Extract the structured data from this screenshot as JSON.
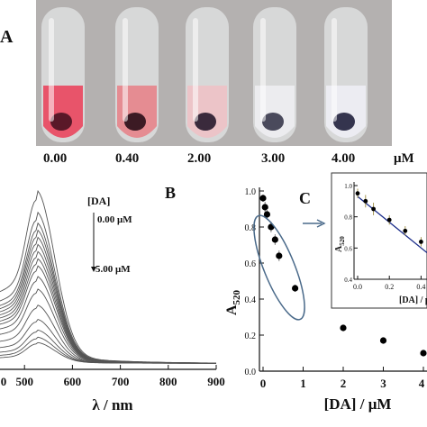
{
  "panel_a": {
    "letter": "A",
    "unit": "μM",
    "tubes": [
      {
        "conc": "0.00",
        "liquid": "#e8546a",
        "pellet": "#5a1828"
      },
      {
        "conc": "0.40",
        "liquid": "#e58c92",
        "pellet": "#3c1a24"
      },
      {
        "conc": "2.00",
        "liquid": "#ecc4c8",
        "pellet": "#3a2a3c"
      },
      {
        "conc": "3.00",
        "liquid": "#ececef",
        "pellet": "#4a4a5c"
      },
      {
        "conc": "4.00",
        "liquid": "#ececf2",
        "pellet": "#34344e"
      }
    ]
  },
  "chart_data": [
    {
      "panel": "B",
      "type": "line",
      "xlabel": "λ / nm",
      "ylabel": "",
      "xlim": [
        400,
        900
      ],
      "xticks": [
        "0",
        "500",
        "600",
        "700",
        "800",
        "900"
      ],
      "legend_title": "[DA]",
      "legend_top": "0.00 μM",
      "legend_bottom": "5.00 μM",
      "series_peak_values": [
        1.0,
        0.88,
        0.82,
        0.78,
        0.74,
        0.7,
        0.66,
        0.62,
        0.58,
        0.52,
        0.45,
        0.36,
        0.28,
        0.22,
        0.18,
        0.15
      ],
      "baseline": 0.035
    },
    {
      "panel": "C",
      "type": "scatter",
      "xlabel": "[DA] / μM",
      "ylabel": "A520",
      "xlim": [
        0,
        4
      ],
      "ylim": [
        0,
        1.0
      ],
      "xticks": [
        "0",
        "1",
        "2",
        "3",
        "4"
      ],
      "yticks": [
        "0.0",
        "0.2",
        "0.4",
        "0.6",
        "0.8",
        "1.0"
      ],
      "points": [
        {
          "x": 0.0,
          "y": 0.96,
          "err": 0.02
        },
        {
          "x": 0.05,
          "y": 0.91,
          "err": 0.03
        },
        {
          "x": 0.1,
          "y": 0.87,
          "err": 0.03
        },
        {
          "x": 0.2,
          "y": 0.8,
          "err": 0.03
        },
        {
          "x": 0.3,
          "y": 0.73,
          "err": 0.03
        },
        {
          "x": 0.4,
          "y": 0.64,
          "err": 0.03
        },
        {
          "x": 0.8,
          "y": 0.46,
          "err": 0.02
        },
        {
          "x": 2.0,
          "y": 0.24,
          "err": 0.0
        },
        {
          "x": 3.0,
          "y": 0.17,
          "err": 0.0
        },
        {
          "x": 4.0,
          "y": 0.1,
          "err": 0.0
        }
      ],
      "inset": {
        "xlabel": "[DA] / μ",
        "ylabel": "A520",
        "xlim": [
          0,
          0.5
        ],
        "ylim": [
          0.4,
          1.0
        ],
        "xticks": [
          "0.0",
          "0.2",
          "0.4"
        ],
        "yticks": [
          "0.4",
          "0.6",
          "0.8",
          "1.0"
        ],
        "points": [
          {
            "x": 0.0,
            "y": 0.95,
            "err": 0.03
          },
          {
            "x": 0.05,
            "y": 0.9,
            "err": 0.04
          },
          {
            "x": 0.1,
            "y": 0.85,
            "err": 0.04
          },
          {
            "x": 0.2,
            "y": 0.78,
            "err": 0.03
          },
          {
            "x": 0.3,
            "y": 0.71,
            "err": 0.03
          },
          {
            "x": 0.4,
            "y": 0.64,
            "err": 0.03
          }
        ],
        "fit": [
          [
            0.0,
            0.93
          ],
          [
            0.5,
            0.57
          ]
        ]
      }
    }
  ]
}
